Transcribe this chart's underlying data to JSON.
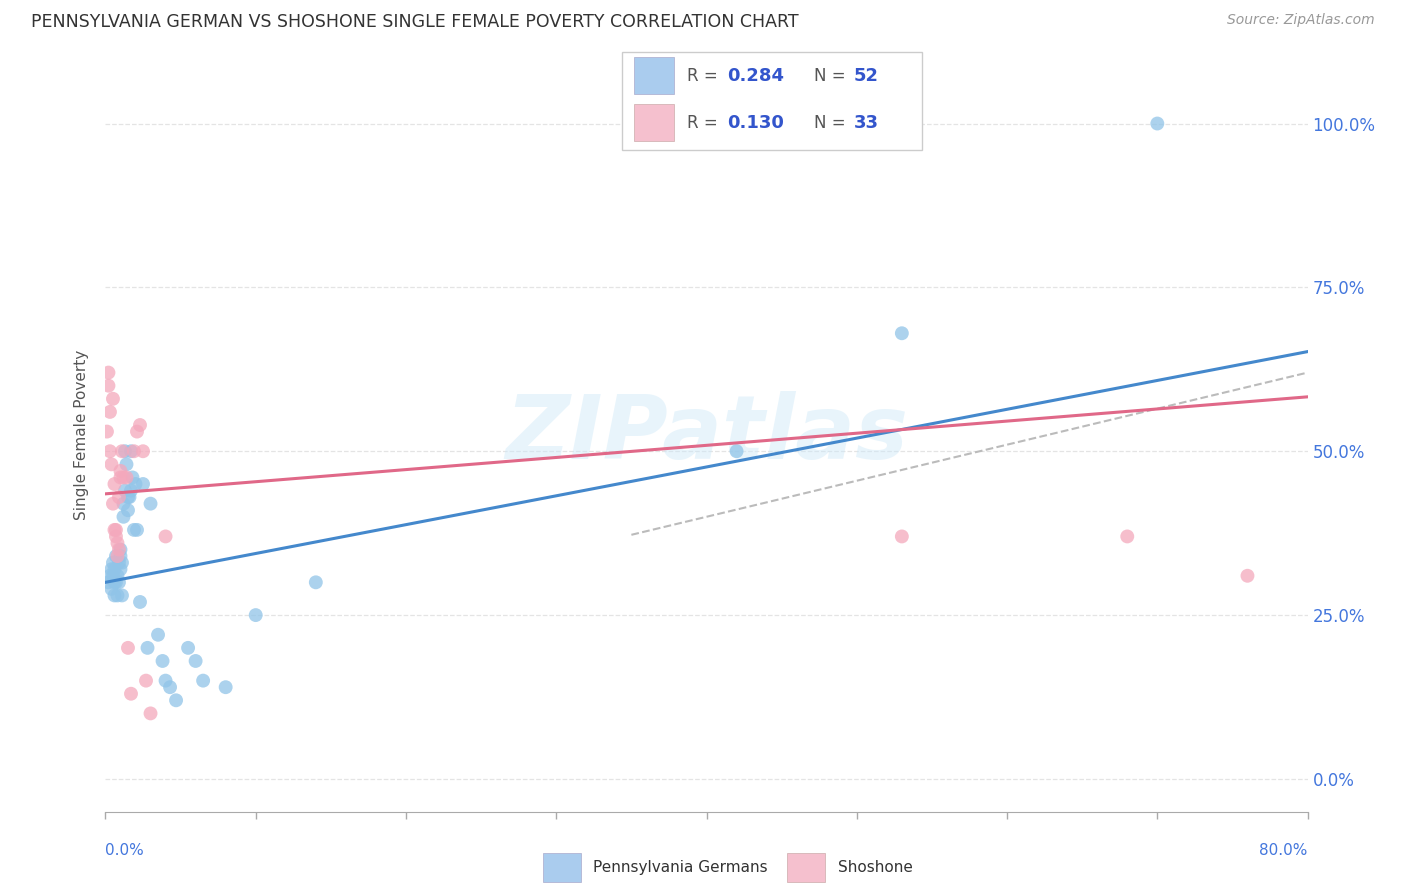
{
  "title": "PENNSYLVANIA GERMAN VS SHOSHONE SINGLE FEMALE POVERTY CORRELATION CHART",
  "source": "Source: ZipAtlas.com",
  "ylabel": "Single Female Poverty",
  "legend_label_1": "Pennsylvania Germans",
  "legend_label_2": "Shoshone",
  "r1": "0.284",
  "n1": "52",
  "r2": "0.130",
  "n2": "33",
  "blue_scatter_color": "#90c4e8",
  "pink_scatter_color": "#f4a8bc",
  "blue_line_color": "#4488cc",
  "pink_line_color": "#e06888",
  "gray_dash_color": "#bbbbbb",
  "right_ytick_vals": [
    0.0,
    25.0,
    50.0,
    75.0,
    100.0
  ],
  "right_ytick_labels": [
    "0.0%",
    "25.0%",
    "50.0%",
    "75.0%",
    "100.0%"
  ],
  "xlim": [
    0.0,
    80.0
  ],
  "ylim": [
    -5.0,
    110.0
  ],
  "blue_points_x": [
    0.2,
    0.3,
    0.4,
    0.4,
    0.5,
    0.5,
    0.6,
    0.6,
    0.6,
    0.7,
    0.7,
    0.8,
    0.8,
    0.9,
    0.9,
    1.0,
    1.0,
    1.0,
    1.1,
    1.1,
    1.2,
    1.2,
    1.3,
    1.3,
    1.4,
    1.5,
    1.5,
    1.6,
    1.7,
    1.7,
    1.8,
    1.9,
    2.0,
    2.1,
    2.3,
    2.5,
    2.8,
    3.0,
    3.5,
    3.8,
    4.0,
    4.3,
    4.7,
    5.5,
    6.0,
    6.5,
    8.0,
    10.0,
    14.0,
    42.0,
    53.0,
    70.0
  ],
  "blue_points_y": [
    30.0,
    31.0,
    32.0,
    29.0,
    33.0,
    31.0,
    30.0,
    32.0,
    28.0,
    34.0,
    30.0,
    31.0,
    28.0,
    30.0,
    33.0,
    32.0,
    34.0,
    35.0,
    28.0,
    33.0,
    40.0,
    42.0,
    44.0,
    50.0,
    48.0,
    43.0,
    41.0,
    43.0,
    50.0,
    44.0,
    46.0,
    38.0,
    45.0,
    38.0,
    27.0,
    45.0,
    20.0,
    42.0,
    22.0,
    18.0,
    15.0,
    14.0,
    12.0,
    20.0,
    18.0,
    15.0,
    14.0,
    25.0,
    30.0,
    50.0,
    68.0,
    100.0
  ],
  "pink_points_x": [
    0.1,
    0.2,
    0.2,
    0.3,
    0.3,
    0.4,
    0.5,
    0.5,
    0.6,
    0.6,
    0.7,
    0.7,
    0.8,
    0.8,
    0.9,
    0.9,
    1.0,
    1.0,
    1.1,
    1.2,
    1.4,
    1.5,
    1.7,
    1.9,
    2.1,
    2.3,
    2.5,
    2.7,
    3.0,
    4.0,
    53.0,
    68.0,
    76.0
  ],
  "pink_points_y": [
    53.0,
    62.0,
    60.0,
    56.0,
    50.0,
    48.0,
    42.0,
    58.0,
    38.0,
    45.0,
    37.0,
    38.0,
    34.0,
    36.0,
    35.0,
    43.0,
    46.0,
    47.0,
    50.0,
    46.0,
    46.0,
    20.0,
    13.0,
    50.0,
    53.0,
    54.0,
    50.0,
    15.0,
    10.0,
    37.0,
    37.0,
    37.0,
    31.0
  ],
  "watermark": "ZIPatlas",
  "blue_legend_color": "#aaccee",
  "pink_legend_color": "#f5c0ce",
  "legend_text_color": "#3355cc",
  "grid_color": "#e4e4e4",
  "ytick_label_color": "#4477dd",
  "xlabel_color": "#4477dd"
}
